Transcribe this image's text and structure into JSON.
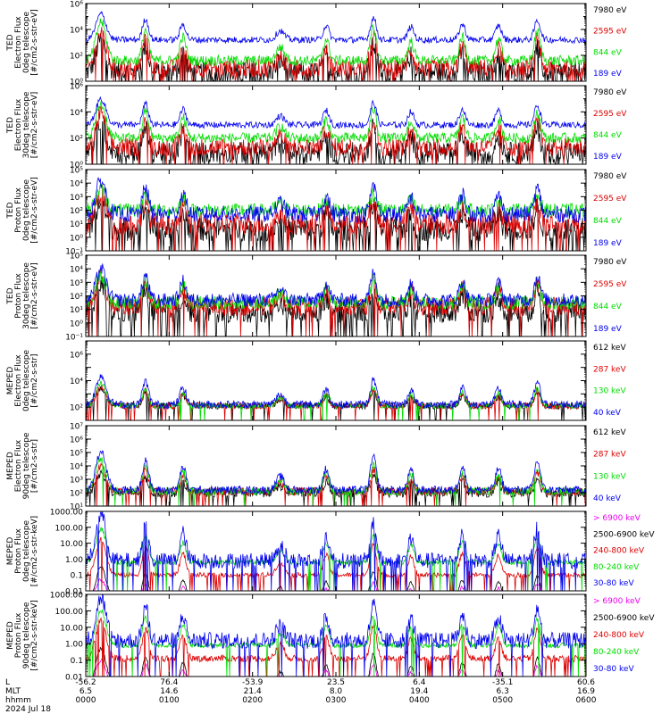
{
  "chart_data": {
    "type": "line",
    "date_label": "2024 Jul 18",
    "x_axis": {
      "row_labels": [
        "L",
        "MLT",
        "hhmm"
      ],
      "ticks": [
        {
          "L": "-56.2",
          "MLT": "6.5",
          "hhmm": "0000"
        },
        {
          "L": "76.4",
          "MLT": "14.6",
          "hhmm": "0100"
        },
        {
          "L": "-53.9",
          "MLT": "21.4",
          "hhmm": "0200"
        },
        {
          "L": "23.5",
          "MLT": "8.0",
          "hhmm": "0300"
        },
        {
          "L": "6.4",
          "MLT": "19.4",
          "hhmm": "0400"
        },
        {
          "L": "-35.1",
          "MLT": "6.3",
          "hhmm": "0500"
        },
        {
          "L": "60.6",
          "MLT": "16.9",
          "hhmm": "0600"
        }
      ]
    },
    "panels": [
      {
        "ylabel": [
          "TED",
          "Electron Flux",
          "0deg telescope",
          "[#/cm2-s-str-eV]"
        ],
        "yscale": "log",
        "ylim_exp": [
          0,
          6
        ],
        "major_exps": [
          0,
          2,
          4,
          6
        ],
        "labeled_exps": [
          0,
          2,
          4,
          6
        ],
        "tick_format": "pow10",
        "channels": [
          {
            "label": "7980 eV",
            "color": "#000000"
          },
          {
            "label": "2595 eV",
            "color": "#dd0000"
          },
          {
            "label": "844 eV",
            "color": "#00dd00"
          },
          {
            "label": "189 eV",
            "color": "#0000ee"
          }
        ],
        "series_profile": [
          {
            "base": 0.7,
            "bump": 2.5,
            "noise": 0.8,
            "drop": 0.5
          },
          {
            "base": 1.0,
            "bump": 2.8,
            "noise": 0.7,
            "drop": 0.3
          },
          {
            "base": 1.6,
            "bump": 3.0,
            "noise": 0.4,
            "drop": 0.0
          },
          {
            "base": 3.2,
            "bump": 2.0,
            "noise": 0.25,
            "drop": 0.0
          }
        ]
      },
      {
        "ylabel": [
          "TED",
          "Electron Flux",
          "30deg telescope",
          "[#/cm2-s-str-eV]"
        ],
        "yscale": "log",
        "ylim_exp": [
          0,
          6
        ],
        "major_exps": [
          0,
          2,
          4,
          6
        ],
        "labeled_exps": [
          0,
          2,
          4,
          6
        ],
        "tick_format": "pow10",
        "channels": [
          {
            "label": "7980 eV",
            "color": "#000000"
          },
          {
            "label": "2595 eV",
            "color": "#dd0000"
          },
          {
            "label": "844 eV",
            "color": "#00dd00"
          },
          {
            "label": "189 eV",
            "color": "#0000ee"
          }
        ],
        "series_profile": [
          {
            "base": 0.9,
            "bump": 2.3,
            "noise": 0.8,
            "drop": 0.4
          },
          {
            "base": 1.3,
            "bump": 2.5,
            "noise": 0.7,
            "drop": 0.2
          },
          {
            "base": 2.0,
            "bump": 2.6,
            "noise": 0.4,
            "drop": 0.0
          },
          {
            "base": 3.0,
            "bump": 2.0,
            "noise": 0.25,
            "drop": 0.0
          }
        ]
      },
      {
        "ylabel": [
          "TED",
          "Proton Flux",
          "0deg telescope",
          "[#/cm2-s-str-eV]"
        ],
        "yscale": "log",
        "ylim_exp": [
          -1,
          5
        ],
        "major_exps": [
          -1,
          0,
          1,
          2,
          3,
          4,
          5
        ],
        "labeled_exps": [
          -1,
          0,
          1,
          2,
          3,
          4,
          5
        ],
        "tick_format": "pow10",
        "channels": [
          {
            "label": "7980 eV",
            "color": "#000000"
          },
          {
            "label": "2595 eV",
            "color": "#dd0000"
          },
          {
            "label": "844 eV",
            "color": "#00dd00"
          },
          {
            "label": "189 eV",
            "color": "#0000ee"
          }
        ],
        "series_profile": [
          {
            "base": 0.6,
            "bump": 2.0,
            "noise": 0.9,
            "drop": 0.5
          },
          {
            "base": 1.0,
            "bump": 2.2,
            "noise": 0.8,
            "drop": 0.3
          },
          {
            "base": 2.0,
            "bump": 1.5,
            "noise": 0.5,
            "drop": 0.0
          },
          {
            "base": 1.7,
            "bump": 2.5,
            "noise": 0.6,
            "drop": 0.0
          }
        ]
      },
      {
        "ylabel": [
          "TED",
          "Proton Flux",
          "30deg telescope",
          "[#/cm2-s-str-eV]"
        ],
        "yscale": "log",
        "ylim_exp": [
          -1,
          5
        ],
        "major_exps": [
          -1,
          0,
          1,
          2,
          3,
          4,
          5
        ],
        "labeled_exps": [
          -1,
          0,
          1,
          2,
          3,
          4,
          5
        ],
        "tick_format": "pow10",
        "channels": [
          {
            "label": "7980 eV",
            "color": "#000000"
          },
          {
            "label": "2595 eV",
            "color": "#dd0000"
          },
          {
            "label": "844 eV",
            "color": "#00dd00"
          },
          {
            "label": "189 eV",
            "color": "#0000ee"
          }
        ],
        "series_profile": [
          {
            "base": 0.8,
            "bump": 2.0,
            "noise": 0.8,
            "drop": 0.4
          },
          {
            "base": 1.2,
            "bump": 2.2,
            "noise": 0.7,
            "drop": 0.2
          },
          {
            "base": 1.5,
            "bump": 2.0,
            "noise": 0.5,
            "drop": 0.0
          },
          {
            "base": 1.7,
            "bump": 2.3,
            "noise": 0.5,
            "drop": 0.0
          }
        ]
      },
      {
        "ylabel": [
          "MEPED",
          "Electron Flux",
          "0deg telescope",
          "[#/cm2-s-str]"
        ],
        "yscale": "log",
        "ylim_exp": [
          1,
          7
        ],
        "major_exps": [
          1,
          2,
          3,
          4,
          5,
          6,
          7
        ],
        "labeled_exps": [
          2,
          4,
          6
        ],
        "tick_format": "pow10",
        "channels": [
          {
            "label": "612 keV",
            "color": "#000000"
          },
          {
            "label": "287 keV",
            "color": "#dd0000"
          },
          {
            "label": "130 keV",
            "color": "#00dd00"
          },
          {
            "label": "40 keV",
            "color": "#0000ee"
          }
        ],
        "series_profile": [
          {
            "base": 2.1,
            "bump": 1.3,
            "noise": 0.25,
            "drop": 0.2
          },
          {
            "base": 2.1,
            "bump": 1.5,
            "noise": 0.25,
            "drop": 0.2
          },
          {
            "base": 2.1,
            "bump": 1.7,
            "noise": 0.2,
            "drop": 0.1
          },
          {
            "base": 2.2,
            "bump": 2.2,
            "noise": 0.3,
            "drop": 0.0
          }
        ]
      },
      {
        "ylabel": [
          "MEPED",
          "Electron Flux",
          "90deg telescope",
          "[#/cm2-s-str]"
        ],
        "yscale": "log",
        "ylim_exp": [
          1,
          7
        ],
        "major_exps": [
          1,
          2,
          3,
          4,
          5,
          6,
          7
        ],
        "labeled_exps": [
          1,
          2,
          3,
          4,
          5,
          6,
          7
        ],
        "tick_format": "pow10",
        "channels": [
          {
            "label": "612 keV",
            "color": "#000000"
          },
          {
            "label": "287 keV",
            "color": "#dd0000"
          },
          {
            "label": "130 keV",
            "color": "#00dd00"
          },
          {
            "label": "40 keV",
            "color": "#0000ee"
          }
        ],
        "series_profile": [
          {
            "base": 2.0,
            "bump": 1.4,
            "noise": 0.35,
            "drop": 0.2
          },
          {
            "base": 2.1,
            "bump": 1.9,
            "noise": 0.3,
            "drop": 0.2
          },
          {
            "base": 2.1,
            "bump": 2.4,
            "noise": 0.3,
            "drop": 0.1
          },
          {
            "base": 2.2,
            "bump": 2.9,
            "noise": 0.3,
            "drop": 0.0
          }
        ]
      },
      {
        "ylabel": [
          "MEPED",
          "Proton Flux",
          "0deg telescope",
          "[#/cm2-s-str-keV]"
        ],
        "yscale": "log",
        "ylim_exp": [
          -2,
          3
        ],
        "major_exps": [
          -2,
          -1,
          0,
          1,
          2,
          3
        ],
        "labeled_exps": [
          -2,
          -1,
          0,
          1,
          2,
          3
        ],
        "tick_format": "decimal",
        "channels": [
          {
            "label": "> 6900 keV",
            "color": "#ee00ee"
          },
          {
            "label": "2500-6900 keV",
            "color": "#000000"
          },
          {
            "label": "240-800 keV",
            "color": "#dd0000"
          },
          {
            "label": "80-240 keV",
            "color": "#00dd00"
          },
          {
            "label": "30-80 keV",
            "color": "#0000ee"
          }
        ],
        "series_profile": [
          {
            "base": -2.5,
            "bump": 1.2,
            "noise": 0.1,
            "drop": 0.0
          },
          {
            "base": -2.5,
            "bump": 2.0,
            "noise": 0.1,
            "drop": 0.0
          },
          {
            "base": -1.0,
            "bump": 2.3,
            "noise": 0.15,
            "drop": 0.3
          },
          {
            "base": -0.2,
            "bump": 2.1,
            "noise": 0.15,
            "drop": 0.1
          },
          {
            "base": -0.1,
            "bump": 2.9,
            "noise": 0.5,
            "drop": 0.3
          }
        ]
      },
      {
        "ylabel": [
          "MEPED",
          "Proton Flux",
          "90deg telescope",
          "[#/cm2-s-str-keV]"
        ],
        "yscale": "log",
        "ylim_exp": [
          -2,
          3
        ],
        "major_exps": [
          -2,
          -1,
          0,
          1,
          2,
          3
        ],
        "labeled_exps": [
          -2,
          -1,
          0,
          1,
          2,
          3
        ],
        "tick_format": "decimal",
        "channels": [
          {
            "label": "> 6900 keV",
            "color": "#ee00ee"
          },
          {
            "label": "2500-6900 keV",
            "color": "#000000"
          },
          {
            "label": "240-800 keV",
            "color": "#dd0000"
          },
          {
            "label": "80-240 keV",
            "color": "#00dd00"
          },
          {
            "label": "30-80 keV",
            "color": "#0000ee"
          }
        ],
        "series_profile": [
          {
            "base": -2.5,
            "bump": 1.5,
            "noise": 0.1,
            "drop": 0.0
          },
          {
            "base": -2.5,
            "bump": 2.2,
            "noise": 0.1,
            "drop": 0.0
          },
          {
            "base": -0.9,
            "bump": 2.4,
            "noise": 0.2,
            "drop": 0.3
          },
          {
            "base": -0.1,
            "bump": 2.1,
            "noise": 0.15,
            "drop": 0.1
          },
          {
            "base": 0.2,
            "bump": 2.6,
            "noise": 0.5,
            "drop": 0.2
          }
        ]
      }
    ],
    "events_hhmm": [
      "0011",
      "0043",
      "0110",
      "0220",
      "0253",
      "0327",
      "0354",
      "0431",
      "0457",
      "0525"
    ],
    "event_amplitudes": [
      1.0,
      0.8,
      0.6,
      0.35,
      0.55,
      0.85,
      0.5,
      0.6,
      0.55,
      0.75
    ],
    "event_widths_min": [
      5,
      3,
      3,
      4,
      3,
      3,
      3,
      3,
      3,
      3
    ]
  }
}
